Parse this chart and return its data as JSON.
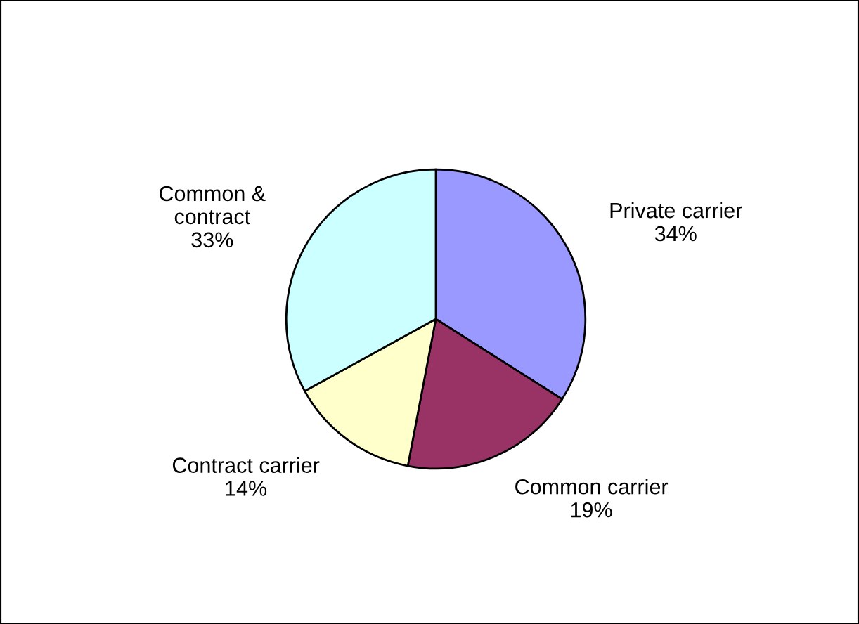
{
  "chart_data": {
    "type": "pie",
    "categories": [
      "Private carrier",
      "Common carrier",
      "Contract carrier",
      "Common &\ncontract"
    ],
    "values": [
      34,
      19,
      14,
      33
    ],
    "value_labels": [
      "34%",
      "19%",
      "14%",
      "33%"
    ],
    "colors": [
      "#9999ff",
      "#993366",
      "#ffffcc",
      "#ccffff"
    ],
    "legend": false
  }
}
